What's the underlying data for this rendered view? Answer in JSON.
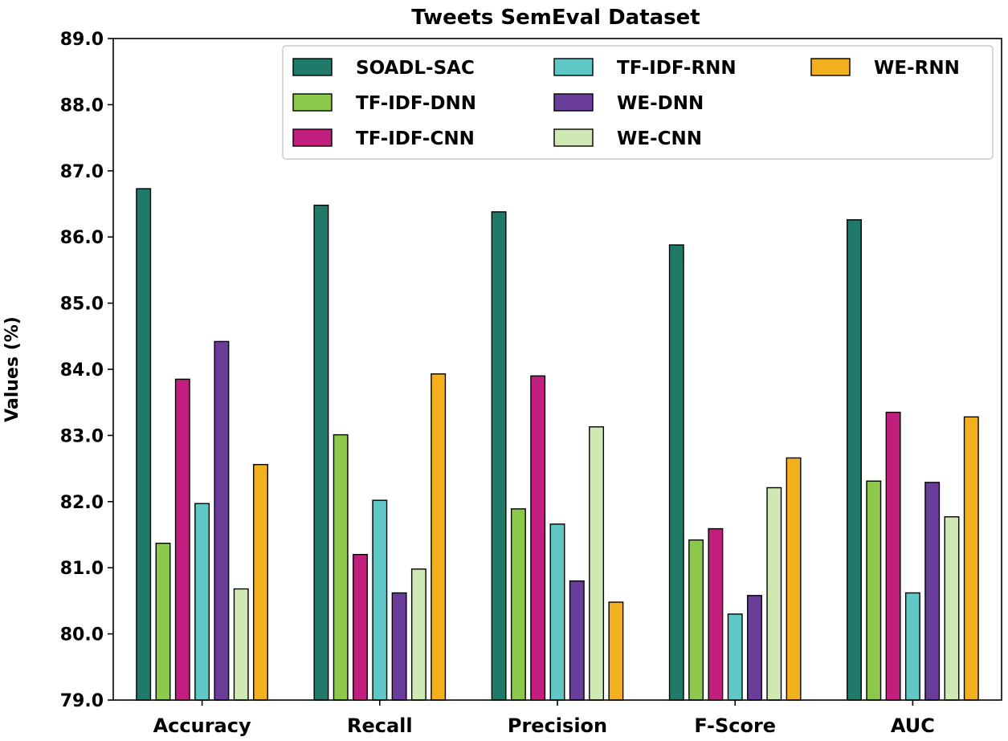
{
  "chart_data": {
    "type": "bar",
    "title": "Tweets SemEval Dataset",
    "xlabel": "",
    "ylabel": "Values (%)",
    "ylim": [
      79.0,
      89.0
    ],
    "yticks": [
      "79.0",
      "80.0",
      "81.0",
      "82.0",
      "83.0",
      "84.0",
      "85.0",
      "86.0",
      "87.0",
      "88.0",
      "89.0"
    ],
    "categories": [
      "Accuracy",
      "Recall",
      "Precision",
      "F-Score",
      "AUC"
    ],
    "legend_position": "top-right",
    "series": [
      {
        "name": "SOADL-SAC",
        "color": "#1f7a6a",
        "values": [
          86.73,
          86.48,
          86.38,
          85.88,
          86.26
        ]
      },
      {
        "name": "TF-IDF-DNN",
        "color": "#8cc84b",
        "values": [
          81.37,
          83.01,
          81.89,
          81.42,
          82.31
        ]
      },
      {
        "name": "TF-IDF-CNN",
        "color": "#c21e7d",
        "values": [
          83.85,
          81.2,
          83.9,
          81.59,
          83.35
        ]
      },
      {
        "name": "TF-IDF-RNN",
        "color": "#5fc8c4",
        "values": [
          81.97,
          82.02,
          81.66,
          80.3,
          80.62
        ]
      },
      {
        "name": "WE-DNN",
        "color": "#6a3d9a",
        "values": [
          84.42,
          80.62,
          80.8,
          80.58,
          82.29
        ]
      },
      {
        "name": "WE-CNN",
        "color": "#cfe8b4",
        "values": [
          80.68,
          80.98,
          83.13,
          82.21,
          81.77
        ]
      },
      {
        "name": "WE-RNN",
        "color": "#f2b01e",
        "values": [
          82.56,
          83.93,
          80.48,
          82.66,
          83.28
        ]
      }
    ]
  }
}
